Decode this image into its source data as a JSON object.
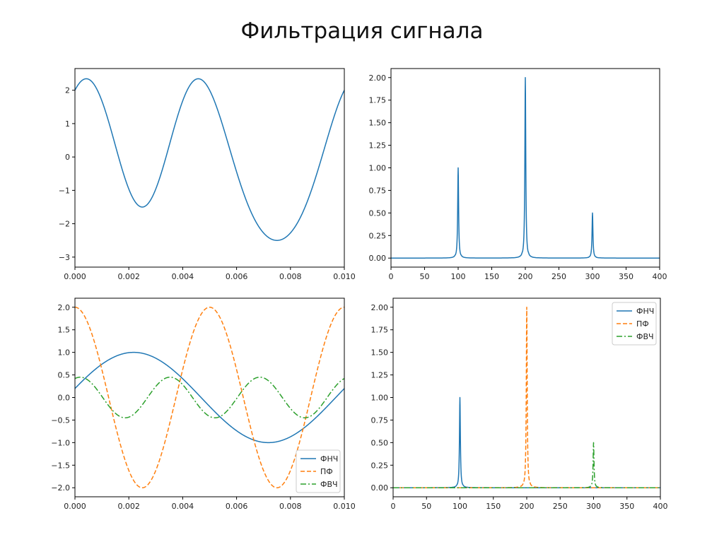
{
  "slide_title": "Фильтрация сигнала",
  "chart_data": [
    {
      "type": "line",
      "xlim": [
        0,
        0.01
      ],
      "ylim": [
        -3.3,
        2.65
      ],
      "x_ticks": [
        "0.000",
        "0.002",
        "0.004",
        "0.006",
        "0.008",
        "0.010"
      ],
      "x_tick_values": [
        0,
        0.002,
        0.004,
        0.006,
        0.008,
        0.01
      ],
      "y_ticks": [
        "−3",
        "−2",
        "−1",
        "0",
        "1",
        "2"
      ],
      "y_tick_values": [
        -3,
        -2,
        -1,
        0,
        1,
        2
      ],
      "series": [
        {
          "color": "#1f77b4",
          "dash": "solid",
          "formula": "sin(2*pi*100*t)+2*cos(2*pi*200*t)+0.5*sin(2*pi*300*t)"
        }
      ]
    },
    {
      "type": "line",
      "xlim": [
        0,
        400
      ],
      "ylim": [
        -0.1,
        2.1
      ],
      "x_ticks": [
        "0",
        "50",
        "100",
        "150",
        "200",
        "250",
        "300",
        "350",
        "400"
      ],
      "x_tick_values": [
        0,
        50,
        100,
        150,
        200,
        250,
        300,
        350,
        400
      ],
      "y_ticks": [
        "0.00",
        "0.25",
        "0.50",
        "0.75",
        "1.00",
        "1.25",
        "1.50",
        "1.75",
        "2.00"
      ],
      "y_tick_values": [
        0,
        0.25,
        0.5,
        0.75,
        1,
        1.25,
        1.5,
        1.75,
        2
      ],
      "series": [
        {
          "color": "#1f77b4",
          "dash": "solid",
          "peaks": [
            [
              100,
              1.0
            ],
            [
              200,
              2.0
            ],
            [
              300,
              0.5
            ]
          ]
        }
      ]
    },
    {
      "type": "line",
      "xlim": [
        0,
        0.01
      ],
      "ylim": [
        -2.2,
        2.2
      ],
      "x_ticks": [
        "0.000",
        "0.002",
        "0.004",
        "0.006",
        "0.008",
        "0.010"
      ],
      "x_tick_values": [
        0,
        0.002,
        0.004,
        0.006,
        0.008,
        0.01
      ],
      "y_ticks": [
        "−2.0",
        "−1.5",
        "−1.0",
        "−0.5",
        "0.0",
        "0.5",
        "1.0",
        "1.5",
        "2.0"
      ],
      "y_tick_values": [
        -2,
        -1.5,
        -1,
        -0.5,
        0,
        0.5,
        1,
        1.5,
        2
      ],
      "legend": "bottom-right",
      "series": [
        {
          "name": "ФНЧ",
          "color": "#1f77b4",
          "dash": "solid",
          "formula": "1.0*sin(2*pi*100*t+0.2)"
        },
        {
          "name": "ПФ",
          "color": "#ff7f0e",
          "dash": "dashed",
          "formula": "2.0*cos(2*pi*200*t)"
        },
        {
          "name": "ФВЧ",
          "color": "#2ca02c",
          "dash": "dashdot",
          "formula": "0.45*sin(2*pi*300*t+1.2)"
        }
      ]
    },
    {
      "type": "line",
      "xlim": [
        0,
        400
      ],
      "ylim": [
        -0.1,
        2.1
      ],
      "x_ticks": [
        "0",
        "50",
        "100",
        "150",
        "200",
        "250",
        "300",
        "350",
        "400"
      ],
      "x_tick_values": [
        0,
        50,
        100,
        150,
        200,
        250,
        300,
        350,
        400
      ],
      "y_ticks": [
        "0.00",
        "0.25",
        "0.50",
        "0.75",
        "1.00",
        "1.25",
        "1.50",
        "1.75",
        "2.00"
      ],
      "y_tick_values": [
        0,
        0.25,
        0.5,
        0.75,
        1,
        1.25,
        1.5,
        1.75,
        2
      ],
      "legend": "top-right",
      "series": [
        {
          "name": "ФНЧ",
          "color": "#1f77b4",
          "dash": "solid",
          "peaks": [
            [
              100,
              1.0
            ]
          ]
        },
        {
          "name": "ПФ",
          "color": "#ff7f0e",
          "dash": "dashed",
          "peaks": [
            [
              200,
              2.0
            ]
          ]
        },
        {
          "name": "ФВЧ",
          "color": "#2ca02c",
          "dash": "dashdot",
          "peaks": [
            [
              300,
              0.5
            ]
          ]
        }
      ]
    }
  ]
}
